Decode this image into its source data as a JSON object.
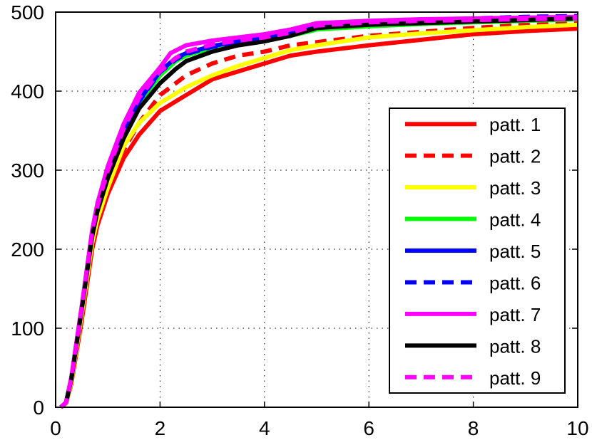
{
  "chart_data": {
    "type": "line",
    "xlim": [
      0,
      10
    ],
    "ylim": [
      0,
      500
    ],
    "xticks": [
      0,
      2,
      4,
      6,
      8,
      10
    ],
    "yticks": [
      0,
      100,
      200,
      300,
      400,
      500
    ],
    "grid": true,
    "legend_position": "bottom-right",
    "series": [
      {
        "name": "patt. 1",
        "color": "#ff0000",
        "style": "solid",
        "x": [
          0.1,
          0.2,
          0.3,
          0.5,
          0.7,
          0.8,
          1.0,
          1.3,
          1.6,
          2.0,
          2.5,
          3.0,
          3.5,
          4.0,
          4.5,
          5.0,
          6.0,
          7.0,
          8.0,
          9.0,
          10.0
        ],
        "y": [
          0,
          5,
          30,
          110,
          200,
          230,
          270,
          315,
          345,
          375,
          395,
          415,
          425,
          435,
          445,
          450,
          458,
          465,
          472,
          476,
          479
        ]
      },
      {
        "name": "patt. 2",
        "color": "#ff0000",
        "style": "dashed",
        "x": [
          0.1,
          0.2,
          0.3,
          0.5,
          0.7,
          0.8,
          1.0,
          1.3,
          1.6,
          2.0,
          2.5,
          3.0,
          3.5,
          4.0,
          4.5,
          5.0,
          6.0,
          7.0,
          8.0,
          9.0,
          10.0
        ],
        "y": [
          0,
          5,
          30,
          115,
          205,
          235,
          275,
          325,
          360,
          395,
          420,
          435,
          445,
          450,
          458,
          462,
          470,
          475,
          480,
          484,
          487
        ]
      },
      {
        "name": "patt. 3",
        "color": "#ffff00",
        "style": "solid",
        "x": [
          0.1,
          0.2,
          0.3,
          0.5,
          0.7,
          0.8,
          1.0,
          1.3,
          1.6,
          2.0,
          2.5,
          3.0,
          3.5,
          4.0,
          4.5,
          5.0,
          6.0,
          7.0,
          8.0,
          9.0,
          10.0
        ],
        "y": [
          0,
          5,
          32,
          118,
          208,
          238,
          278,
          330,
          360,
          385,
          405,
          420,
          432,
          442,
          452,
          458,
          468,
          473,
          477,
          481,
          484
        ]
      },
      {
        "name": "patt. 4",
        "color": "#00ff00",
        "style": "solid",
        "x": [
          0.1,
          0.2,
          0.3,
          0.5,
          0.7,
          0.8,
          1.0,
          1.3,
          1.6,
          2.0,
          2.3,
          2.5,
          3.0,
          3.5,
          4.0,
          4.5,
          5.0,
          6.0,
          7.0,
          8.0,
          9.0,
          10.0
        ],
        "y": [
          0,
          6,
          36,
          125,
          218,
          250,
          292,
          345,
          385,
          420,
          438,
          445,
          455,
          462,
          465,
          470,
          478,
          482,
          485,
          487,
          489,
          491
        ]
      },
      {
        "name": "patt. 5",
        "color": "#0000ff",
        "style": "solid",
        "x": [
          0.1,
          0.2,
          0.3,
          0.5,
          0.7,
          0.8,
          1.0,
          1.3,
          1.6,
          2.0,
          2.3,
          2.5,
          3.0,
          3.5,
          4.0,
          4.5,
          5.0,
          6.0,
          7.0,
          8.0,
          9.0,
          10.0
        ],
        "y": [
          0,
          6,
          36,
          126,
          220,
          252,
          295,
          348,
          388,
          425,
          442,
          448,
          457,
          463,
          467,
          475,
          485,
          488,
          490,
          491,
          492,
          493
        ]
      },
      {
        "name": "patt. 6",
        "color": "#0000ff",
        "style": "dashed",
        "x": [
          0.1,
          0.2,
          0.3,
          0.5,
          0.7,
          0.8,
          1.0,
          1.3,
          1.6,
          2.0,
          2.3,
          2.5,
          3.0,
          3.5,
          4.0,
          4.5,
          5.0,
          6.0,
          7.0,
          8.0,
          9.0,
          10.0
        ],
        "y": [
          0,
          6,
          36,
          125,
          219,
          251,
          294,
          347,
          387,
          424,
          440,
          447,
          456,
          462,
          466,
          474,
          484,
          488,
          490,
          492,
          494,
          495
        ]
      },
      {
        "name": "patt. 7",
        "color": "#ff00ff",
        "style": "solid",
        "x": [
          0.1,
          0.2,
          0.3,
          0.5,
          0.7,
          0.8,
          1.0,
          1.3,
          1.6,
          2.0,
          2.2,
          2.5,
          3.0,
          3.5,
          4.0,
          4.5,
          5.0,
          6.0,
          7.0,
          8.0,
          9.0,
          10.0
        ],
        "y": [
          0,
          6,
          38,
          128,
          224,
          258,
          305,
          358,
          398,
          430,
          448,
          458,
          464,
          468,
          472,
          478,
          486,
          489,
          491,
          492,
          493,
          494
        ]
      },
      {
        "name": "patt. 8",
        "color": "#000000",
        "style": "solid",
        "x": [
          0.1,
          0.2,
          0.3,
          0.5,
          0.7,
          0.8,
          1.0,
          1.3,
          1.6,
          2.0,
          2.3,
          2.5,
          3.0,
          3.5,
          4.0,
          4.5,
          5.0,
          6.0,
          7.0,
          8.0,
          9.0,
          10.0
        ],
        "y": [
          0,
          6,
          35,
          124,
          216,
          248,
          290,
          340,
          378,
          410,
          428,
          438,
          450,
          458,
          463,
          470,
          480,
          484,
          486,
          488,
          490,
          492
        ]
      },
      {
        "name": "patt. 9",
        "color": "#ff00ff",
        "style": "dashed",
        "x": [
          0.1,
          0.2,
          0.3,
          0.5,
          0.7,
          0.8,
          1.0,
          1.3,
          1.6,
          2.0,
          2.3,
          2.5,
          3.0,
          3.5,
          4.0,
          4.5,
          5.0,
          6.0,
          7.0,
          8.0,
          9.0,
          10.0
        ],
        "y": [
          0,
          6,
          37,
          127,
          222,
          255,
          300,
          352,
          392,
          425,
          442,
          450,
          459,
          464,
          468,
          474,
          483,
          487,
          489,
          490,
          491,
          492
        ]
      }
    ]
  }
}
